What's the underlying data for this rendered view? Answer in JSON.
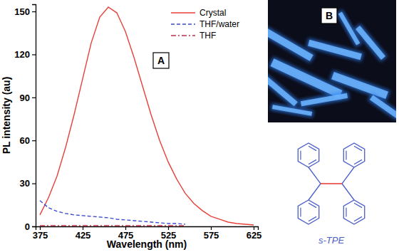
{
  "chart_data": {
    "type": "line",
    "x_label": "Wavelength (nm)",
    "y_label": "PL intensity (au)",
    "x": [
      375,
      385,
      395,
      405,
      415,
      425,
      435,
      445,
      455,
      465,
      475,
      485,
      495,
      505,
      515,
      525,
      535,
      545,
      555,
      565,
      575,
      585,
      595,
      605,
      615,
      625
    ],
    "series": [
      {
        "name": "Crystal",
        "color": "#e8403a",
        "line_style": "solid",
        "values": [
          8,
          20,
          35,
          55,
          78,
          103,
          128,
          146,
          153,
          149,
          136,
          118,
          98,
          78,
          60,
          45,
          33,
          23,
          16,
          11,
          7,
          5,
          3,
          2,
          1.5,
          1
        ]
      },
      {
        "name": "THF/water",
        "color": "#3a4bd0",
        "line_style": "dashed",
        "values": [
          18,
          13,
          10.5,
          9,
          8,
          7.5,
          7,
          6.5,
          6,
          5,
          4.5,
          4,
          3.5,
          3,
          2.5,
          2,
          2,
          1.5,
          null,
          null,
          null,
          null,
          null,
          null,
          null,
          null
        ]
      },
      {
        "name": "THF",
        "color": "#c0304a",
        "line_style": "dashdot",
        "values": [
          0.5,
          0.5,
          0.5,
          0.5,
          0.5,
          0.5,
          0.5,
          0.5,
          0.5,
          0.5,
          0.5,
          0.5,
          0.5,
          0.5,
          0.5,
          0.5,
          0.5,
          0.5,
          null,
          null,
          null,
          null,
          null,
          null,
          null,
          null
        ]
      }
    ],
    "xlim": [
      370,
      630
    ],
    "xticks": [
      375,
      425,
      475,
      525,
      575,
      625
    ],
    "ylim": [
      0,
      155
    ],
    "yticks": [
      0,
      30,
      60,
      90,
      120,
      150
    ],
    "grid": false,
    "legend": "upper right",
    "annotations": [
      "A",
      "B",
      "s-TPE"
    ]
  }
}
